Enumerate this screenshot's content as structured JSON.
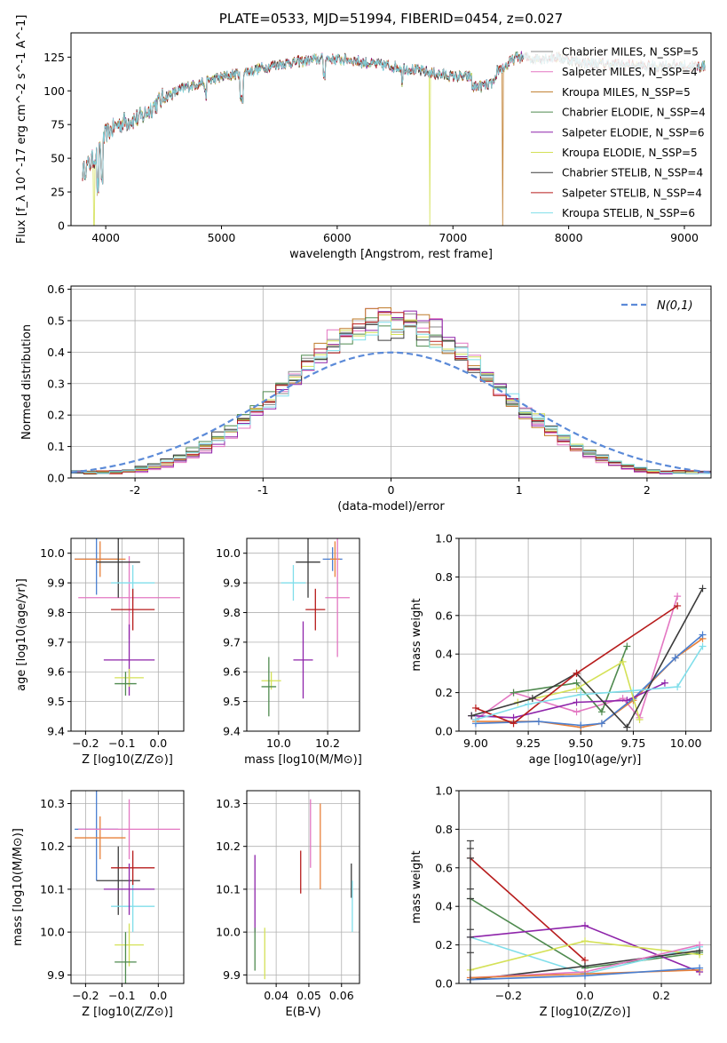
{
  "title": "PLATE=0533, MJD=51994, FIBERID=0454, z=0.027",
  "colors": {
    "Chabrier MILES": "#8a8a8a",
    "Salpeter MILES": "#e377c2",
    "Kroupa MILES": "#bf7b2a",
    "Chabrier ELODIE": "#4f8a4f",
    "Salpeter ELODIE": "#8e24aa",
    "Kroupa ELODIE": "#d4e157",
    "Chabrier STELIB": "#3b3b3b",
    "Salpeter STELIB": "#b71c1c",
    "Kroupa STELIB": "#80deea",
    "blue": "#4a7fd0",
    "orange": "#e8813a",
    "grid": "#b0b0b0",
    "gaussian": "#5b8ad8"
  },
  "chart_data": [
    {
      "id": "spectrum",
      "type": "line",
      "title": "PLATE=0533, MJD=51994, FIBERID=0454, z=0.027",
      "xlabel": "wavelength [Angstrom, rest frame]",
      "ylabel": "Flux [f_λ 10^-17 erg cm^-2 s^-1 A^-1]",
      "xlim": [
        3700,
        9230
      ],
      "ylim": [
        0,
        143
      ],
      "xticks": [
        4000,
        5000,
        6000,
        7000,
        8000,
        9000
      ],
      "yticks": [
        0,
        25,
        50,
        75,
        100,
        125
      ],
      "grid": false,
      "legend_position": "right",
      "continuum": [
        [
          3800,
          40
        ],
        [
          3950,
          55
        ],
        [
          4000,
          68
        ],
        [
          4100,
          75
        ],
        [
          4200,
          78
        ],
        [
          4300,
          80
        ],
        [
          4500,
          95
        ],
        [
          4700,
          103
        ],
        [
          4900,
          108
        ],
        [
          5100,
          112
        ],
        [
          5300,
          116
        ],
        [
          5500,
          120
        ],
        [
          5700,
          122
        ],
        [
          5900,
          124
        ],
        [
          6100,
          123
        ],
        [
          6300,
          120
        ],
        [
          6500,
          118
        ],
        [
          6700,
          115
        ],
        [
          6900,
          112
        ],
        [
          7100,
          110
        ],
        [
          7300,
          112
        ],
        [
          7450,
          118
        ],
        [
          7550,
          125
        ],
        [
          7700,
          124
        ],
        [
          7900,
          125
        ],
        [
          8100,
          121
        ],
        [
          8300,
          120
        ],
        [
          8500,
          119
        ],
        [
          8700,
          118
        ],
        [
          8900,
          119
        ],
        [
          9100,
          118
        ]
      ],
      "series": [
        {
          "name": "Chabrier MILES, N_SSP=5",
          "color_key": "Chabrier MILES",
          "dropouts": []
        },
        {
          "name": "Salpeter MILES, N_SSP=4",
          "color_key": "Salpeter MILES",
          "dropouts": []
        },
        {
          "name": "Kroupa MILES, N_SSP=5",
          "color_key": "Kroupa MILES",
          "dropouts": [
            7430
          ]
        },
        {
          "name": "Chabrier ELODIE, N_SSP=4",
          "color_key": "Chabrier ELODIE",
          "dropouts": []
        },
        {
          "name": "Salpeter ELODIE, N_SSP=6",
          "color_key": "Salpeter ELODIE",
          "dropouts": []
        },
        {
          "name": "Kroupa ELODIE, N_SSP=5",
          "color_key": "Kroupa ELODIE",
          "dropouts": [
            3900,
            6800
          ]
        },
        {
          "name": "Chabrier STELIB, N_SSP=4",
          "color_key": "Chabrier STELIB",
          "dropouts": []
        },
        {
          "name": "Salpeter STELIB, N_SSP=4",
          "color_key": "Salpeter STELIB",
          "dropouts": []
        },
        {
          "name": "Kroupa STELIB, N_SSP=6",
          "color_key": "Kroupa STELIB",
          "dropouts": []
        }
      ]
    },
    {
      "id": "residuals",
      "type": "histogram",
      "xlabel": "(data-model)/error",
      "ylabel": "Normed distribution",
      "xlim": [
        -2.5,
        2.5
      ],
      "ylim": [
        0,
        0.61
      ],
      "xticks": [
        -2,
        -1,
        0,
        1,
        2
      ],
      "yticks": [
        0.0,
        0.1,
        0.2,
        0.3,
        0.4,
        0.5,
        0.6
      ],
      "grid": true,
      "legend_position": "top-right",
      "legend_label": "N(0,1)",
      "bin_width": 0.1,
      "series": [
        {
          "color_key": "Chabrier MILES",
          "shift": 0.0,
          "scale": 1.25
        },
        {
          "color_key": "Salpeter MILES",
          "shift": 0.03,
          "scale": 1.32
        },
        {
          "color_key": "Kroupa MILES",
          "shift": -0.02,
          "scale": 1.28
        },
        {
          "color_key": "Chabrier ELODIE",
          "shift": -0.05,
          "scale": 1.2
        },
        {
          "color_key": "Salpeter ELODIE",
          "shift": 0.02,
          "scale": 1.3
        },
        {
          "color_key": "Kroupa ELODIE",
          "shift": 0.05,
          "scale": 1.22
        },
        {
          "color_key": "Chabrier STELIB",
          "shift": -0.03,
          "scale": 1.18
        },
        {
          "color_key": "Salpeter STELIB",
          "shift": 0.0,
          "scale": 1.24
        },
        {
          "color_key": "Kroupa STELIB",
          "shift": 0.04,
          "scale": 1.2
        }
      ]
    },
    {
      "id": "age-vs-Z",
      "type": "scatter",
      "xlabel": "Z [log10(Z/Z⊙)]",
      "ylabel": "age [log10(age/yr)]",
      "xlim": [
        -0.24,
        0.07
      ],
      "ylim": [
        9.4,
        10.05
      ],
      "xticks": [
        -0.2,
        -0.1,
        0.0
      ],
      "xtick_labels": [
        "−0.2",
        "−0.1",
        "0.0"
      ],
      "yticks": [
        9.4,
        9.5,
        9.6,
        9.7,
        9.8,
        9.9,
        10.0
      ],
      "grid": true,
      "points": [
        {
          "color_key": "blue",
          "x": -0.17,
          "y": 9.98,
          "xerr": 0.06,
          "yerr": 0.12
        },
        {
          "color_key": "orange",
          "x": -0.16,
          "y": 9.98,
          "xerr": 0.07,
          "yerr": 0.06
        },
        {
          "color_key": "Salpeter MILES",
          "x": -0.08,
          "y": 9.85,
          "xerr": 0.14,
          "yerr": 0.14
        },
        {
          "color_key": "Chabrier STELIB",
          "x": -0.11,
          "y": 9.97,
          "xerr": 0.06,
          "yerr": 0.12
        },
        {
          "color_key": "Kroupa STELIB",
          "x": -0.07,
          "y": 9.9,
          "xerr": 0.06,
          "yerr": 0.06
        },
        {
          "color_key": "Salpeter STELIB",
          "x": -0.07,
          "y": 9.81,
          "xerr": 0.06,
          "yerr": 0.07
        },
        {
          "color_key": "Salpeter ELODIE",
          "x": -0.08,
          "y": 9.64,
          "xerr": 0.07,
          "yerr": 0.12
        },
        {
          "color_key": "Kroupa ELODIE",
          "x": -0.08,
          "y": 9.58,
          "xerr": 0.04,
          "yerr": 0.03
        },
        {
          "color_key": "Chabrier ELODIE",
          "x": -0.09,
          "y": 9.56,
          "xerr": 0.03,
          "yerr": 0.04
        }
      ]
    },
    {
      "id": "age-vs-mass",
      "type": "scatter",
      "xlabel": "mass [log10(M/M⊙)]",
      "ylabel": "",
      "xlim": [
        9.87,
        10.33
      ],
      "ylim": [
        9.4,
        10.05
      ],
      "xticks": [
        10.0,
        10.2
      ],
      "xtick_labels": [
        "10.0",
        "10.2"
      ],
      "yticks": [
        9.4,
        9.5,
        9.6,
        9.7,
        9.8,
        9.9,
        10.0
      ],
      "grid": true,
      "points": [
        {
          "color_key": "blue",
          "x": 10.22,
          "y": 9.98,
          "xerr": 0.04,
          "yerr": 0.04
        },
        {
          "color_key": "orange",
          "x": 10.23,
          "y": 9.98,
          "xerr": 0.02,
          "yerr": 0.06
        },
        {
          "color_key": "Salpeter MILES",
          "x": 10.24,
          "y": 9.85,
          "xerr": 0.05,
          "yerr": 0.2
        },
        {
          "color_key": "Chabrier STELIB",
          "x": 10.12,
          "y": 9.97,
          "xerr": 0.05,
          "yerr": 0.12
        },
        {
          "color_key": "Kroupa STELIB",
          "x": 10.06,
          "y": 9.9,
          "xerr": 0.05,
          "yerr": 0.06
        },
        {
          "color_key": "Salpeter STELIB",
          "x": 10.15,
          "y": 9.81,
          "xerr": 0.04,
          "yerr": 0.07
        },
        {
          "color_key": "Salpeter ELODIE",
          "x": 10.1,
          "y": 9.64,
          "xerr": 0.04,
          "yerr": 0.13
        },
        {
          "color_key": "Kroupa ELODIE",
          "x": 9.97,
          "y": 9.57,
          "xerr": 0.04,
          "yerr": 0.03
        },
        {
          "color_key": "Chabrier ELODIE",
          "x": 9.96,
          "y": 9.55,
          "xerr": 0.03,
          "yerr": 0.1
        }
      ]
    },
    {
      "id": "mass-weight-vs-age",
      "type": "line",
      "xlabel": "age [log10(age/yr)]",
      "ylabel": "mass weight",
      "xlim": [
        8.92,
        10.12
      ],
      "ylim": [
        0,
        1
      ],
      "xticks": [
        9.0,
        9.25,
        9.5,
        9.75,
        10.0
      ],
      "xtick_labels": [
        "9.00",
        "9.25",
        "9.50",
        "9.75",
        "10.00"
      ],
      "yticks": [
        0.0,
        0.2,
        0.4,
        0.6,
        0.8,
        1.0
      ],
      "grid": true,
      "series": [
        {
          "color_key": "Salpeter MILES",
          "x": [
            9.0,
            9.18,
            9.48,
            9.7,
            9.78,
            9.96
          ],
          "y": [
            0.06,
            0.2,
            0.1,
            0.17,
            0.07,
            0.7
          ]
        },
        {
          "color_key": "orange",
          "x": [
            9.0,
            9.3,
            9.5,
            9.6,
            9.75,
            9.95,
            10.08
          ],
          "y": [
            0.05,
            0.05,
            0.02,
            0.04,
            0.16,
            0.38,
            0.48
          ]
        },
        {
          "color_key": "blue",
          "x": [
            9.0,
            9.3,
            9.5,
            9.6,
            9.75,
            9.95,
            10.08
          ],
          "y": [
            0.04,
            0.05,
            0.03,
            0.04,
            0.17,
            0.38,
            0.5
          ]
        },
        {
          "color_key": "Chabrier ELODIE",
          "x": [
            9.18,
            9.48,
            9.6,
            9.72
          ],
          "y": [
            0.2,
            0.25,
            0.1,
            0.44
          ]
        },
        {
          "color_key": "Salpeter ELODIE",
          "x": [
            8.98,
            9.18,
            9.48,
            9.72,
            9.9
          ],
          "y": [
            0.08,
            0.07,
            0.15,
            0.16,
            0.25
          ]
        },
        {
          "color_key": "Kroupa ELODIE",
          "x": [
            9.2,
            9.48,
            9.7,
            9.78
          ],
          "y": [
            0.15,
            0.22,
            0.36,
            0.06
          ]
        },
        {
          "color_key": "Chabrier STELIB",
          "x": [
            8.98,
            9.27,
            9.48,
            9.72,
            10.08
          ],
          "y": [
            0.08,
            0.17,
            0.3,
            0.02,
            0.74
          ]
        },
        {
          "color_key": "Salpeter STELIB",
          "x": [
            9.0,
            9.18,
            9.48,
            9.96
          ],
          "y": [
            0.12,
            0.04,
            0.3,
            0.65
          ]
        },
        {
          "color_key": "Kroupa STELIB",
          "x": [
            9.0,
            9.25,
            9.5,
            9.75,
            9.96,
            10.08
          ],
          "y": [
            0.06,
            0.14,
            0.19,
            0.21,
            0.23,
            0.44
          ]
        }
      ]
    },
    {
      "id": "mass-vs-Z",
      "type": "scatter",
      "xlabel": "Z [log10(Z/Z⊙)]",
      "ylabel": "mass [log10(M/M⊙)]",
      "xlim": [
        -0.24,
        0.07
      ],
      "ylim": [
        9.88,
        10.33
      ],
      "xticks": [
        -0.2,
        -0.1,
        0.0
      ],
      "xtick_labels": [
        "−0.2",
        "−0.1",
        "0.0"
      ],
      "yticks": [
        9.9,
        10.0,
        10.1,
        10.2,
        10.3
      ],
      "grid": true,
      "points": [
        {
          "color_key": "blue",
          "x": -0.17,
          "y": 10.24,
          "xerr": 0.06,
          "yerr": 0.12
        },
        {
          "color_key": "orange",
          "x": -0.16,
          "y": 10.22,
          "xerr": 0.07,
          "yerr": 0.05
        },
        {
          "color_key": "Salpeter MILES",
          "x": -0.08,
          "y": 10.24,
          "xerr": 0.14,
          "yerr": 0.07
        },
        {
          "color_key": "Chabrier STELIB",
          "x": -0.11,
          "y": 10.12,
          "xerr": 0.06,
          "yerr": 0.08
        },
        {
          "color_key": "Kroupa STELIB",
          "x": -0.07,
          "y": 10.06,
          "xerr": 0.06,
          "yerr": 0.06
        },
        {
          "color_key": "Salpeter STELIB",
          "x": -0.07,
          "y": 10.15,
          "xerr": 0.06,
          "yerr": 0.04
        },
        {
          "color_key": "Salpeter ELODIE",
          "x": -0.08,
          "y": 10.1,
          "xerr": 0.07,
          "yerr": 0.06
        },
        {
          "color_key": "Kroupa ELODIE",
          "x": -0.08,
          "y": 9.97,
          "xerr": 0.04,
          "yerr": 0.05
        },
        {
          "color_key": "Chabrier ELODIE",
          "x": -0.09,
          "y": 9.93,
          "xerr": 0.03,
          "yerr": 0.07
        }
      ]
    },
    {
      "id": "mass-vs-EBV",
      "type": "scatter",
      "xlabel": "E(B-V)",
      "ylabel": "",
      "xlim": [
        0.031,
        0.0655
      ],
      "ylim": [
        9.88,
        10.33
      ],
      "xticks": [
        0.04,
        0.05,
        0.06
      ],
      "xtick_labels": [
        "0.04",
        "0.05",
        "0.06"
      ],
      "yticks": [
        9.9,
        10.0,
        10.1,
        10.2,
        10.3
      ],
      "grid": true,
      "points": [
        {
          "color_key": "Salpeter ELODIE",
          "x": 0.0335,
          "y": 10.09,
          "xerr": 0,
          "yerr": 0.09
        },
        {
          "color_key": "Chabrier ELODIE",
          "x": 0.0335,
          "y": 9.96,
          "xerr": 0,
          "yerr": 0.05
        },
        {
          "color_key": "Kroupa ELODIE",
          "x": 0.0365,
          "y": 9.95,
          "xerr": 0,
          "yerr": 0.06
        },
        {
          "color_key": "Salpeter STELIB",
          "x": 0.0475,
          "y": 10.14,
          "xerr": 0,
          "yerr": 0.05
        },
        {
          "color_key": "Salpeter MILES",
          "x": 0.0505,
          "y": 10.23,
          "xerr": 0,
          "yerr": 0.08
        },
        {
          "color_key": "orange",
          "x": 0.0535,
          "y": 10.2,
          "xerr": 0,
          "yerr": 0.1
        },
        {
          "color_key": "Chabrier STELIB",
          "x": 0.063,
          "y": 10.12,
          "xerr": 0,
          "yerr": 0.04
        },
        {
          "color_key": "Kroupa STELIB",
          "x": 0.0633,
          "y": 10.06,
          "xerr": 0,
          "yerr": 0.06
        }
      ]
    },
    {
      "id": "mass-weight-vs-Z",
      "type": "line",
      "xlabel": "Z [log10(Z/Z⊙)]",
      "ylabel": "mass weight",
      "xlim": [
        -0.33,
        0.33
      ],
      "ylim": [
        0,
        1
      ],
      "xticks": [
        -0.2,
        0.0,
        0.2
      ],
      "xtick_labels": [
        "−0.2",
        "0.0",
        "0.2"
      ],
      "yticks": [
        0.0,
        0.2,
        0.4,
        0.6,
        0.8,
        1.0
      ],
      "grid": true,
      "series": [
        {
          "color_key": "Salpeter STELIB",
          "x": [
            -0.3,
            0.0
          ],
          "y": [
            0.65,
            0.12
          ]
        },
        {
          "color_key": "Chabrier ELODIE",
          "x": [
            -0.3,
            0.0,
            0.3
          ],
          "y": [
            0.44,
            0.08,
            0.16
          ]
        },
        {
          "color_key": "Kroupa STELIB",
          "x": [
            -0.3,
            0.0,
            0.3
          ],
          "y": [
            0.24,
            0.05,
            0.19
          ]
        },
        {
          "color_key": "Salpeter ELODIE",
          "x": [
            -0.3,
            0.0,
            0.3
          ],
          "y": [
            0.24,
            0.3,
            0.06
          ]
        },
        {
          "color_key": "Kroupa ELODIE",
          "x": [
            -0.3,
            0.0,
            0.3
          ],
          "y": [
            0.07,
            0.22,
            0.15
          ]
        },
        {
          "color_key": "Chabrier STELIB",
          "x": [
            -0.3,
            0.0,
            0.3
          ],
          "y": [
            0.02,
            0.09,
            0.17
          ]
        },
        {
          "color_key": "Salpeter MILES",
          "x": [
            -0.3,
            0.0,
            0.3
          ],
          "y": [
            0.03,
            0.06,
            0.2
          ]
        },
        {
          "color_key": "orange",
          "x": [
            -0.3,
            0.0,
            0.3
          ],
          "y": [
            0.03,
            0.05,
            0.07
          ]
        },
        {
          "color_key": "blue",
          "x": [
            -0.3,
            0.0,
            0.3
          ],
          "y": [
            0.02,
            0.04,
            0.08
          ]
        }
      ],
      "vertical_markers_x": -0.3,
      "vertical_markers_y": [
        0.74,
        0.7,
        0.65,
        0.49,
        0.44,
        0.28,
        0.24,
        0.16
      ]
    }
  ]
}
